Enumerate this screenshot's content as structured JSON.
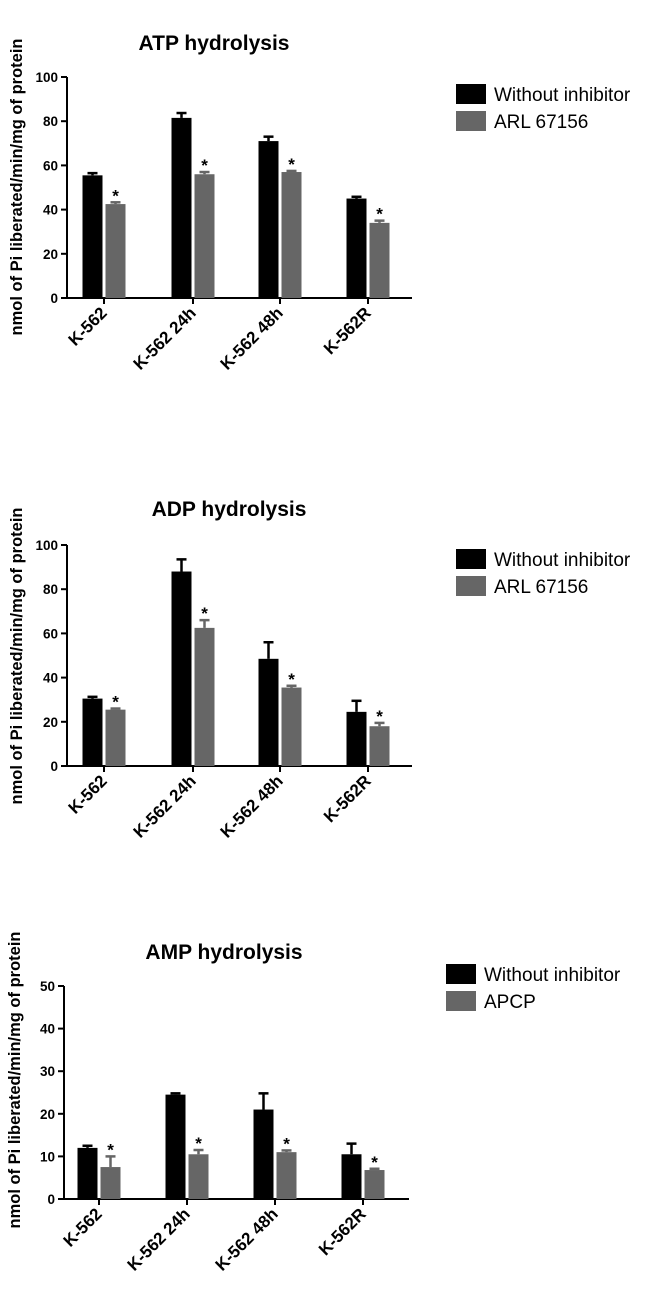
{
  "colors": {
    "without_inhibitor": "#000000",
    "inhibitor": "#666666"
  },
  "chart_data": [
    {
      "type": "bar",
      "title": "ATP hydrolysis",
      "ylabel": "nmol of Pi liberated/min/mg of protein",
      "xlabel": "",
      "ylim": [
        0,
        100
      ],
      "yticks": [
        0,
        20,
        40,
        60,
        80,
        100
      ],
      "categories": [
        "K-562",
        "K-562 24h",
        "K-562 48h",
        "K-562R"
      ],
      "series": [
        {
          "name": "Without inhibitor",
          "values": [
            55.5,
            81.5,
            71,
            45
          ],
          "errors": [
            1,
            2.2,
            2,
            0.8
          ]
        },
        {
          "name": "ARL 67156",
          "values": [
            42.5,
            56,
            57,
            34
          ],
          "errors": [
            0.8,
            1,
            0.5,
            1
          ],
          "annotations": [
            "*",
            "*",
            "*",
            "*"
          ]
        }
      ],
      "legend_placement": "top-right",
      "grid": false
    },
    {
      "type": "bar",
      "title": "ADP hydrolysis",
      "ylabel": "nmol of Pi liberated/min/mg of protein",
      "xlabel": "",
      "ylim": [
        0,
        100
      ],
      "yticks": [
        0,
        20,
        40,
        60,
        80,
        100
      ],
      "categories": [
        "K-562",
        "K-562 24h",
        "K-562 48h",
        "K-562R"
      ],
      "series": [
        {
          "name": "Without inhibitor",
          "values": [
            30.5,
            88,
            48.5,
            24.5
          ],
          "errors": [
            0.8,
            5.5,
            7.5,
            5
          ]
        },
        {
          "name": "ARL 67156",
          "values": [
            25.5,
            62.5,
            35.5,
            18
          ],
          "errors": [
            0.5,
            3.5,
            0.8,
            1.5
          ],
          "annotations": [
            "*",
            "*",
            "*",
            "*"
          ]
        }
      ],
      "legend_placement": "top-right",
      "grid": false
    },
    {
      "type": "bar",
      "title": "AMP hydrolysis",
      "ylabel": "nmol of Pi liberated/min/mg of protein",
      "xlabel": "",
      "ylim": [
        0,
        50
      ],
      "yticks": [
        0,
        10,
        20,
        30,
        40,
        50
      ],
      "categories": [
        "K-562",
        "K-562 24h",
        "K-562 48h",
        "K-562R"
      ],
      "series": [
        {
          "name": "Without inhibitor",
          "values": [
            12,
            24.5,
            21,
            10.5
          ],
          "errors": [
            0.5,
            0.3,
            3.8,
            2.5
          ]
        },
        {
          "name": "APCP",
          "values": [
            7.5,
            10.5,
            11,
            6.8
          ],
          "errors": [
            2.5,
            1,
            0.4,
            0.3
          ],
          "annotations": [
            "*",
            "*",
            "*",
            "*"
          ]
        }
      ],
      "legend_placement": "top-right",
      "grid": false
    }
  ]
}
